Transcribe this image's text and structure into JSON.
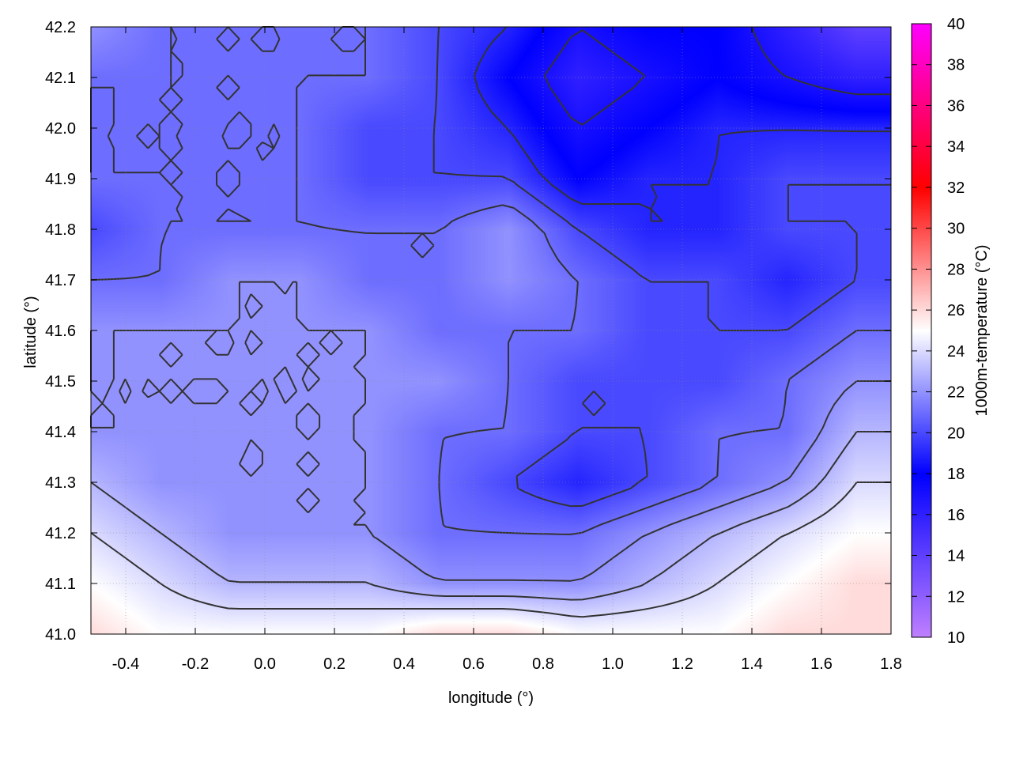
{
  "chart_data": {
    "type": "heatmap",
    "title": "",
    "xlabel": "longitude (°)",
    "ylabel": "latitude (°)",
    "colorbar_label": "1000m-temperature (°C)",
    "xlim": [
      -0.5,
      1.8
    ],
    "ylim": [
      41.0,
      42.2
    ],
    "zlim": [
      10,
      40
    ],
    "xticks": [
      "-0.4",
      "-0.2",
      "0.0",
      "0.2",
      "0.4",
      "0.6",
      "0.8",
      "1.0",
      "1.2",
      "1.4",
      "1.6",
      "1.8"
    ],
    "yticks": [
      "41.0",
      "41.1",
      "41.2",
      "41.3",
      "41.4",
      "41.5",
      "41.6",
      "41.7",
      "41.8",
      "41.9",
      "42.0",
      "42.1",
      "42.2"
    ],
    "cbticks": [
      "10",
      "12",
      "14",
      "16",
      "18",
      "20",
      "22",
      "24",
      "26",
      "28",
      "30",
      "32",
      "34",
      "36",
      "38",
      "40"
    ],
    "grid": true,
    "contours": true,
    "colormap": [
      [
        10,
        "#c080ff"
      ],
      [
        18,
        "#0000ff"
      ],
      [
        25,
        "#ffffff"
      ],
      [
        32,
        "#ff0000"
      ],
      [
        40,
        "#ff00ff"
      ]
    ],
    "x": [
      -0.5,
      -0.3,
      -0.1,
      0.1,
      0.3,
      0.5,
      0.7,
      0.9,
      1.1,
      1.3,
      1.5,
      1.7
    ],
    "y": [
      42.2,
      42.1,
      42.0,
      41.9,
      41.8,
      41.7,
      41.6,
      41.5,
      41.4,
      41.3,
      41.2,
      41.1,
      41.0
    ],
    "z": [
      [
        22,
        21,
        21,
        21,
        21,
        20,
        19,
        17,
        18,
        18,
        16,
        14
      ],
      [
        21,
        21,
        21,
        21,
        21,
        20,
        18,
        16,
        17,
        18,
        17,
        16
      ],
      [
        21,
        21,
        21,
        21,
        20,
        20,
        19,
        17,
        18,
        19,
        19,
        19
      ],
      [
        21,
        21,
        21,
        21,
        20,
        20,
        20,
        18,
        19,
        19,
        20,
        20
      ],
      [
        20,
        21,
        21,
        21,
        21,
        21,
        22,
        20,
        19,
        19,
        20,
        20
      ],
      [
        21,
        21,
        22,
        22,
        21,
        21,
        22,
        21,
        20,
        20,
        19,
        20
      ],
      [
        22,
        22,
        22,
        22,
        22,
        21,
        21,
        21,
        20,
        20,
        20,
        21
      ],
      [
        22,
        22,
        22,
        22,
        22,
        22,
        21,
        20,
        20,
        20,
        21,
        22
      ],
      [
        22,
        22,
        22,
        22,
        22,
        21,
        21,
        20,
        20,
        21,
        21,
        23
      ],
      [
        23,
        22,
        22,
        22,
        22,
        21,
        20,
        19,
        20,
        21,
        22,
        24
      ],
      [
        24,
        23,
        22,
        22,
        22,
        21,
        21,
        21,
        22,
        23,
        24,
        25
      ],
      [
        25,
        24,
        23,
        23,
        23,
        22,
        22,
        22,
        23,
        24,
        25,
        26
      ],
      [
        26,
        25,
        25,
        25,
        25,
        26,
        26,
        25,
        25,
        25,
        26,
        26
      ]
    ]
  }
}
